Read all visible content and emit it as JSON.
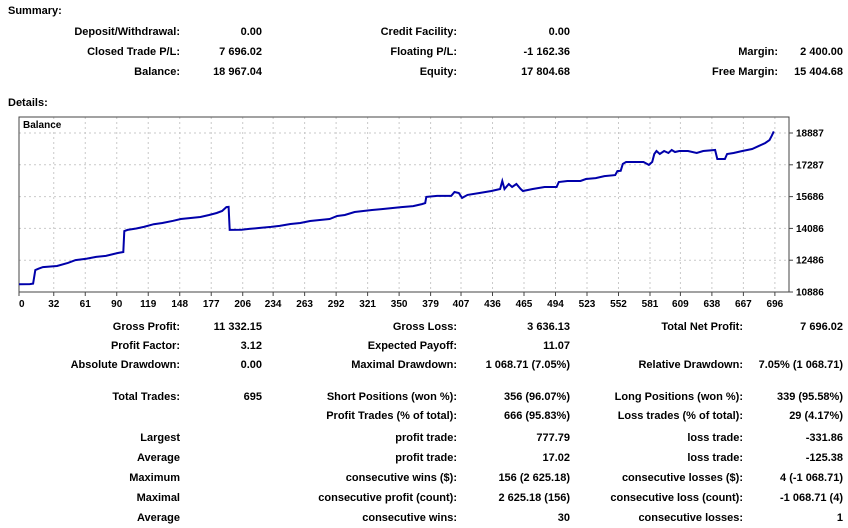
{
  "summary": {
    "title": "Summary:",
    "rows": [
      {
        "c1l": "Deposit/Withdrawal:",
        "c1v": "0.00",
        "c2l": "Credit Facility:",
        "c2v": "0.00",
        "c3l": "",
        "c3v": ""
      },
      {
        "c1l": "Closed Trade P/L:",
        "c1v": "7 696.02",
        "c2l": "Floating P/L:",
        "c2v": "-1 162.36",
        "c3l": "Margin:",
        "c3v": "2 400.00"
      },
      {
        "c1l": "Balance:",
        "c1v": "18 967.04",
        "c2l": "Equity:",
        "c2v": "17 804.68",
        "c3l": "Free Margin:",
        "c3v": "15 404.68"
      }
    ]
  },
  "details": {
    "title": "Details:",
    "block1": [
      {
        "c1l": "Gross Profit:",
        "c1v": "11 332.15",
        "c2l": "Gross Loss:",
        "c2v": "3 636.13",
        "c3l": "Total Net Profit:",
        "c3v": "7 696.02"
      },
      {
        "c1l": "Profit Factor:",
        "c1v": "3.12",
        "c2l": "Expected Payoff:",
        "c2v": "11.07",
        "c3l": "",
        "c3v": ""
      },
      {
        "c1l": "Absolute Drawdown:",
        "c1v": "0.00",
        "c2l": "Maximal Drawdown:",
        "c2v": "1 068.71 (7.05%)",
        "c3l": "Relative Drawdown:",
        "c3v": "7.05% (1 068.71)"
      }
    ],
    "block2": [
      {
        "c1l": "Total Trades:",
        "c1v": "695",
        "c2l": "Short Positions (won %):",
        "c2v": "356 (96.07%)",
        "c3l": "Long Positions (won %):",
        "c3v": "339 (95.58%)"
      },
      {
        "c1l": "",
        "c1v": "",
        "c2l": "Profit Trades (% of total):",
        "c2v": "666 (95.83%)",
        "c3l": "Loss trades (% of total):",
        "c3v": "29 (4.17%)"
      },
      {
        "c1l": "Largest",
        "c1v": "",
        "c2l": "profit trade:",
        "c2v": "777.79",
        "c3l": "loss trade:",
        "c3v": "-331.86"
      },
      {
        "c1l": "Average",
        "c1v": "",
        "c2l": "profit trade:",
        "c2v": "17.02",
        "c3l": "loss trade:",
        "c3v": "-125.38"
      },
      {
        "c1l": "Maximum",
        "c1v": "",
        "c2l": "consecutive wins ($):",
        "c2v": "156 (2 625.18)",
        "c3l": "consecutive losses ($):",
        "c3v": "4 (-1 068.71)"
      },
      {
        "c1l": "Maximal",
        "c1v": "",
        "c2l": "consecutive profit (count):",
        "c2v": "2 625.18 (156)",
        "c3l": "consecutive loss (count):",
        "c3v": "-1 068.71 (4)"
      },
      {
        "c1l": "Average",
        "c1v": "",
        "c2l": "consecutive wins:",
        "c2v": "30",
        "c3l": "consecutive losses:",
        "c3v": "1"
      }
    ]
  },
  "chart_data": {
    "type": "line",
    "title": "Balance",
    "xlabel": "",
    "ylabel": "",
    "x_ticks": [
      0,
      32,
      61,
      90,
      119,
      148,
      177,
      206,
      234,
      263,
      292,
      321,
      350,
      379,
      407,
      436,
      465,
      494,
      523,
      552,
      581,
      609,
      638,
      667,
      696
    ],
    "y_ticks": [
      10886,
      12486,
      14086,
      15686,
      17287,
      18887
    ],
    "x_range": [
      0,
      709
    ],
    "y_range": [
      10886,
      19700
    ],
    "grid": true,
    "legend_position": "top-left",
    "line_color": "#0000AA",
    "grid_color": "#C9C9C9",
    "border_color": "#444444",
    "series": [
      {
        "name": "Balance",
        "points": [
          [
            0,
            11271
          ],
          [
            10,
            11285
          ],
          [
            13,
            11310
          ],
          [
            15,
            11990
          ],
          [
            18,
            12060
          ],
          [
            22,
            12140
          ],
          [
            35,
            12195
          ],
          [
            45,
            12350
          ],
          [
            52,
            12490
          ],
          [
            62,
            12560
          ],
          [
            71,
            12650
          ],
          [
            80,
            12705
          ],
          [
            91,
            12850
          ],
          [
            96,
            12900
          ],
          [
            97,
            13950
          ],
          [
            100,
            14010
          ],
          [
            108,
            14080
          ],
          [
            115,
            14160
          ],
          [
            124,
            14300
          ],
          [
            132,
            14360
          ],
          [
            142,
            14470
          ],
          [
            149,
            14560
          ],
          [
            158,
            14610
          ],
          [
            167,
            14660
          ],
          [
            175,
            14760
          ],
          [
            182,
            14860
          ],
          [
            187,
            14960
          ],
          [
            191,
            15160
          ],
          [
            193,
            15170
          ],
          [
            194,
            14010
          ],
          [
            205,
            14015
          ],
          [
            212,
            14060
          ],
          [
            222,
            14110
          ],
          [
            232,
            14160
          ],
          [
            240,
            14210
          ],
          [
            250,
            14310
          ],
          [
            259,
            14360
          ],
          [
            268,
            14460
          ],
          [
            277,
            14510
          ],
          [
            286,
            14560
          ],
          [
            293,
            14710
          ],
          [
            300,
            14760
          ],
          [
            309,
            14910
          ],
          [
            317,
            14960
          ],
          [
            325,
            15010
          ],
          [
            334,
            15060
          ],
          [
            343,
            15110
          ],
          [
            352,
            15160
          ],
          [
            363,
            15210
          ],
          [
            371,
            15310
          ],
          [
            374,
            15360
          ],
          [
            375,
            15670
          ],
          [
            385,
            15720
          ],
          [
            398,
            15720
          ],
          [
            401,
            15920
          ],
          [
            405,
            15870
          ],
          [
            408,
            15620
          ],
          [
            413,
            15770
          ],
          [
            424,
            15870
          ],
          [
            435,
            15970
          ],
          [
            443,
            16070
          ],
          [
            445,
            16470
          ],
          [
            447,
            16070
          ],
          [
            451,
            16320
          ],
          [
            454,
            16170
          ],
          [
            458,
            16320
          ],
          [
            462,
            16070
          ],
          [
            464,
            15970
          ],
          [
            473,
            16070
          ],
          [
            484,
            16170
          ],
          [
            495,
            16170
          ],
          [
            497,
            16420
          ],
          [
            505,
            16470
          ],
          [
            517,
            16470
          ],
          [
            522,
            16570
          ],
          [
            531,
            16620
          ],
          [
            539,
            16720
          ],
          [
            549,
            16770
          ],
          [
            551,
            16970
          ],
          [
            554,
            16985
          ],
          [
            556,
            17330
          ],
          [
            559,
            17430
          ],
          [
            575,
            17430
          ],
          [
            580,
            17280
          ],
          [
            583,
            17430
          ],
          [
            585,
            17830
          ],
          [
            587,
            17980
          ],
          [
            590,
            17830
          ],
          [
            594,
            17980
          ],
          [
            598,
            17880
          ],
          [
            601,
            18030
          ],
          [
            604,
            17930
          ],
          [
            608,
            17980
          ],
          [
            616,
            17980
          ],
          [
            624,
            17880
          ],
          [
            630,
            17980
          ],
          [
            641,
            18030
          ],
          [
            643,
            17580
          ],
          [
            650,
            17580
          ],
          [
            652,
            17830
          ],
          [
            658,
            17880
          ],
          [
            666,
            17980
          ],
          [
            675,
            18080
          ],
          [
            681,
            18230
          ],
          [
            687,
            18380
          ],
          [
            691,
            18530
          ],
          [
            693,
            18730
          ],
          [
            695,
            18967
          ]
        ]
      }
    ]
  }
}
